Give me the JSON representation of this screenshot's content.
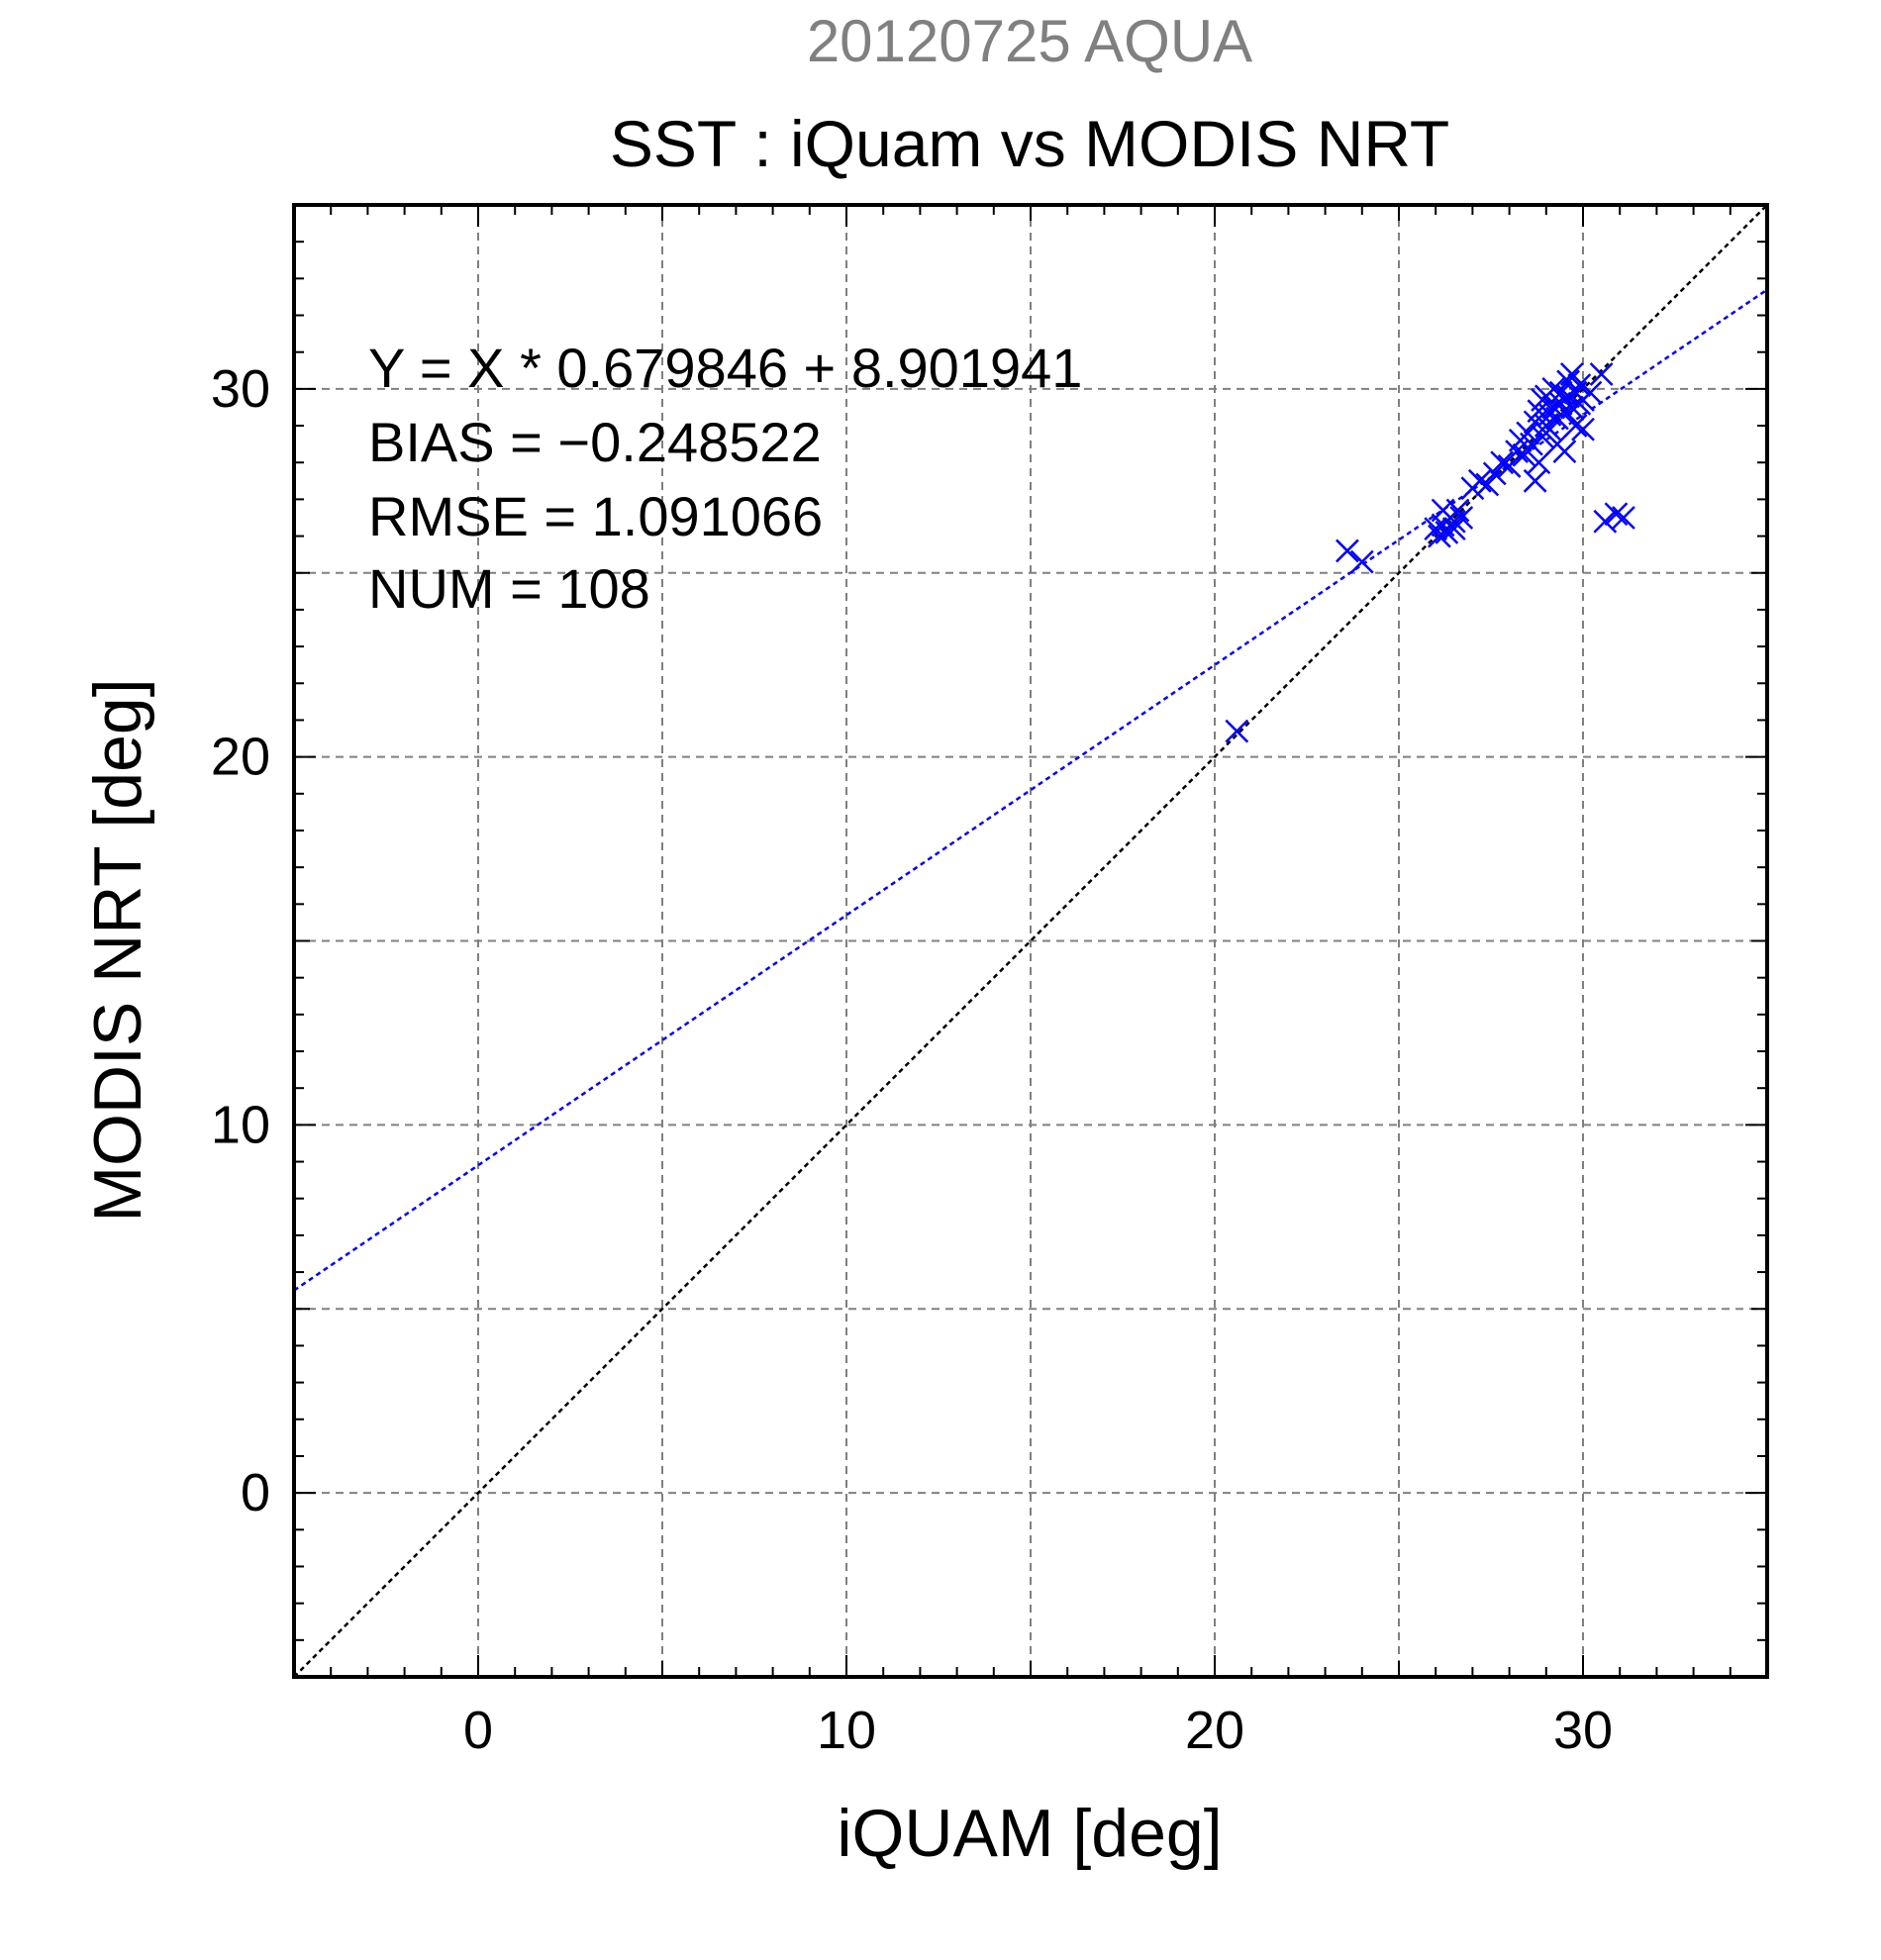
{
  "chart_data": {
    "type": "scatter",
    "header": "20120725 AQUA",
    "title": "SST : iQuam vs MODIS NRT",
    "xlabel": "iQUAM [deg]",
    "ylabel": "MODIS NRT [deg]",
    "xlim": [
      -5,
      35
    ],
    "ylim": [
      -5,
      35
    ],
    "xticks": [
      0,
      10,
      20,
      30
    ],
    "yticks": [
      0,
      10,
      20,
      30
    ],
    "x_minor_step": 1,
    "y_minor_step": 1,
    "grid": true,
    "grid_step": 5,
    "stats": {
      "equation": "Y = X * 0.679846 + 8.901941",
      "bias": "BIAS = −0.248522",
      "rmse": "RMSE = 1.091066",
      "num": "NUM = 108"
    },
    "fit_line": {
      "slope": 0.679846,
      "intercept": 8.901941
    },
    "one_to_one_line": {
      "slope": 1,
      "intercept": 0
    },
    "series": [
      {
        "marker": "x",
        "points": [
          [
            20.6,
            20.7
          ],
          [
            23.6,
            25.6
          ],
          [
            24.0,
            25.3
          ],
          [
            26.0,
            26.2
          ],
          [
            26.1,
            26.0
          ],
          [
            26.2,
            26.3
          ],
          [
            26.3,
            26.1
          ],
          [
            26.4,
            26.5
          ],
          [
            26.5,
            26.4
          ],
          [
            26.6,
            26.7
          ],
          [
            26.7,
            26.5
          ],
          [
            26.2,
            26.7
          ],
          [
            26.5,
            26.2
          ],
          [
            27.0,
            27.3
          ],
          [
            27.2,
            27.5
          ],
          [
            27.4,
            27.4
          ],
          [
            27.6,
            27.7
          ],
          [
            27.8,
            28.0
          ],
          [
            28.0,
            27.9
          ],
          [
            28.2,
            28.3
          ],
          [
            28.3,
            28.6
          ],
          [
            28.4,
            28.2
          ],
          [
            28.5,
            28.8
          ],
          [
            28.6,
            28.5
          ],
          [
            28.7,
            29.1
          ],
          [
            28.7,
            27.5
          ],
          [
            28.8,
            28.0
          ],
          [
            28.8,
            29.4
          ],
          [
            28.9,
            29.7
          ],
          [
            28.9,
            28.7
          ],
          [
            29.0,
            29.0
          ],
          [
            29.0,
            29.8
          ],
          [
            29.1,
            28.9
          ],
          [
            29.1,
            29.3
          ],
          [
            29.2,
            29.5
          ],
          [
            29.2,
            30.0
          ],
          [
            29.3,
            29.2
          ],
          [
            29.3,
            28.5
          ],
          [
            29.4,
            29.6
          ],
          [
            29.4,
            29.9
          ],
          [
            29.5,
            29.4
          ],
          [
            29.5,
            28.3
          ],
          [
            29.6,
            29.8
          ],
          [
            29.6,
            30.2
          ],
          [
            29.7,
            29.5
          ],
          [
            29.7,
            30.4
          ],
          [
            29.8,
            29.9
          ],
          [
            29.8,
            29.0
          ],
          [
            29.9,
            30.1
          ],
          [
            29.9,
            29.6
          ],
          [
            30.0,
            29.7
          ],
          [
            30.0,
            28.9
          ],
          [
            30.2,
            29.9
          ],
          [
            30.5,
            30.4
          ],
          [
            30.6,
            26.4
          ],
          [
            30.9,
            26.6
          ],
          [
            31.1,
            26.5
          ]
        ]
      }
    ],
    "colors": {
      "series": "#0000ff",
      "fit_line": "#0000ff",
      "one_to_one": "#000000",
      "grid": "#808080",
      "header": "#808080",
      "text": "#000000"
    }
  }
}
